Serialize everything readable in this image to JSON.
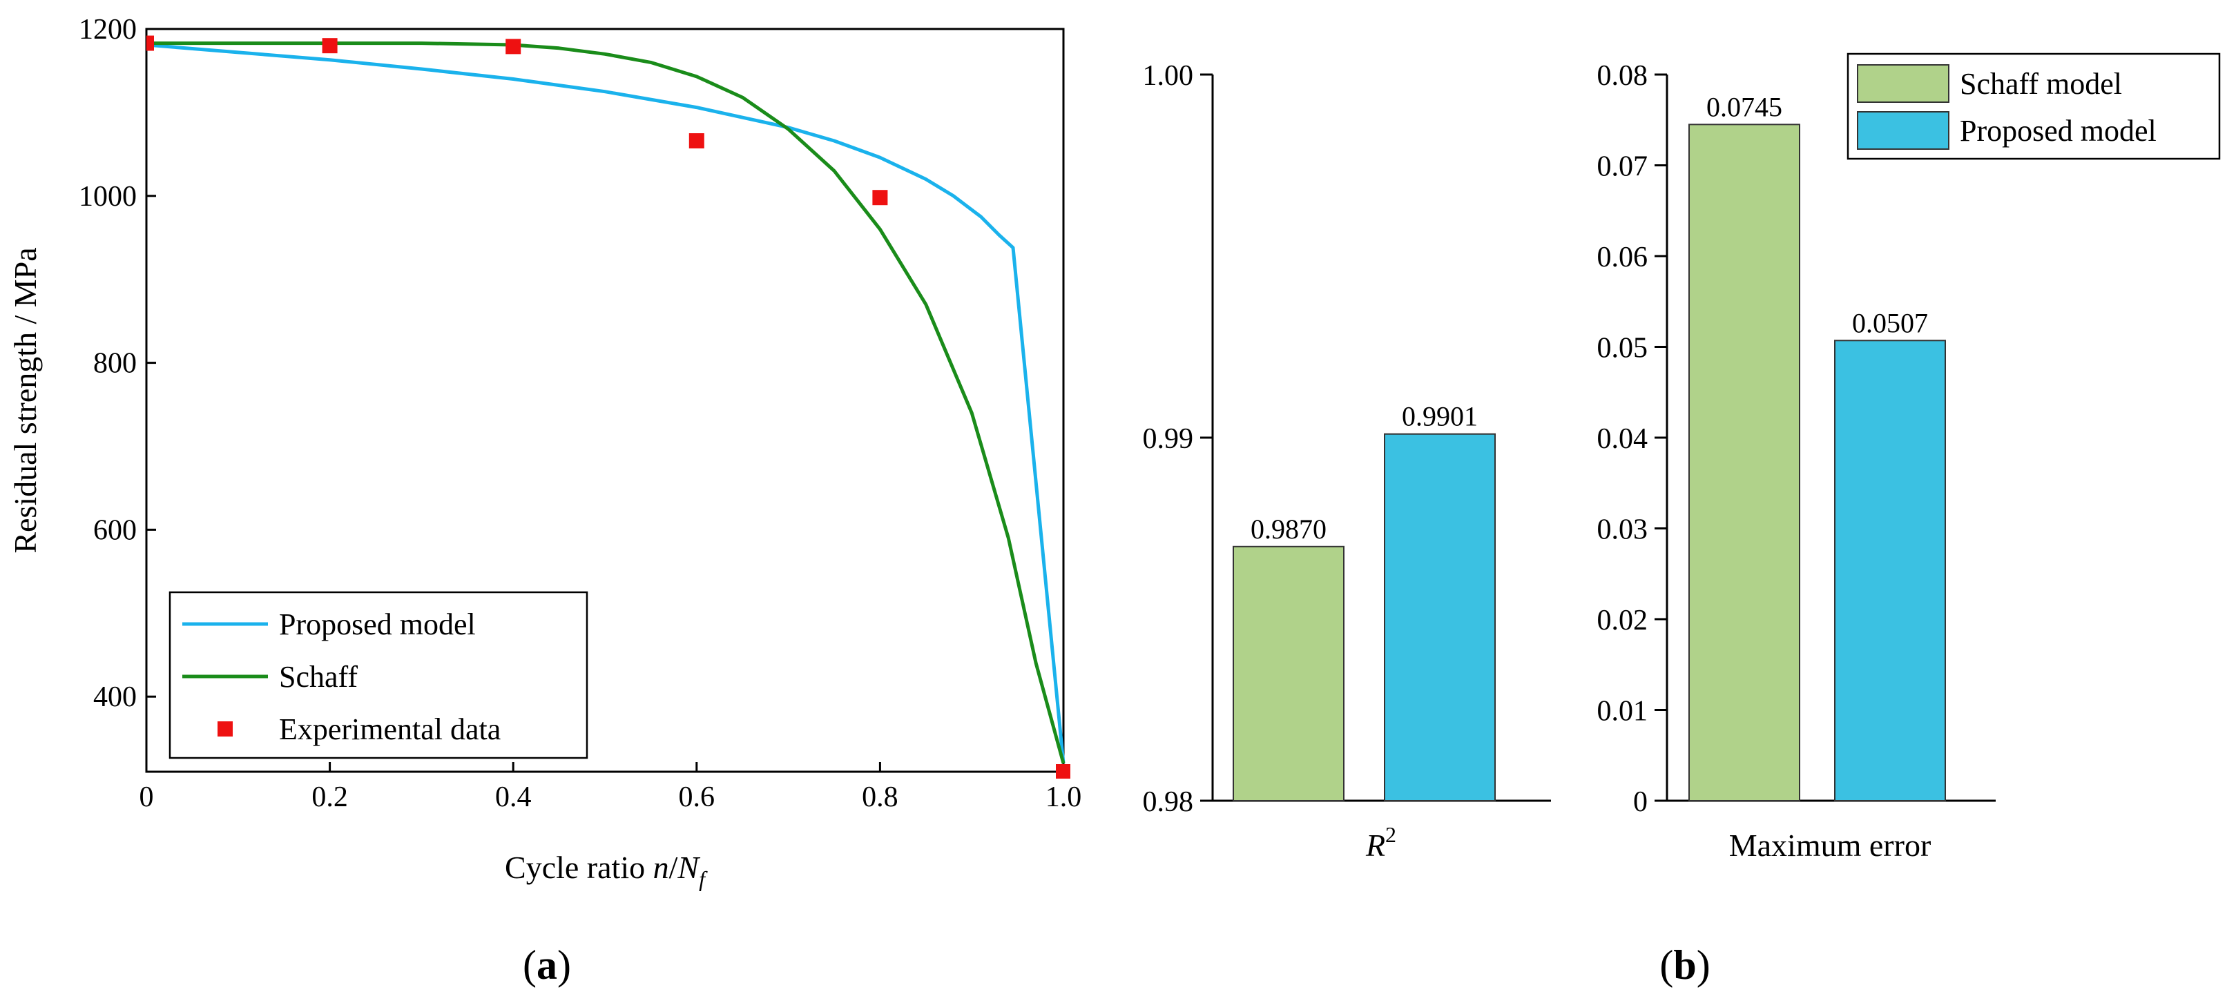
{
  "chart_data": [
    {
      "type": "line",
      "panel": "a",
      "xlabel_prefix": "Cycle ratio ",
      "xlabel_n": "n",
      "xlabel_slash": "/",
      "xlabel_N": "N",
      "xlabel_sub": "f",
      "ylabel": "Residual strength / MPa",
      "xlim": [
        0,
        1.0
      ],
      "ylim": [
        310,
        1200
      ],
      "xticks": [
        0,
        0.2,
        0.4,
        0.6,
        0.8,
        1.0
      ],
      "xtick_labels": [
        "0",
        "0.2",
        "0.4",
        "0.6",
        "0.8",
        "1.0"
      ],
      "yticks": [
        400,
        600,
        800,
        1000,
        1200
      ],
      "ytick_labels": [
        "400",
        "600",
        "800",
        "1000",
        "1200"
      ],
      "legend_position": "bottom-left",
      "series": [
        {
          "name": "Proposed model",
          "style": "line",
          "color": "#1ab2ec",
          "x": [
            0,
            0.1,
            0.2,
            0.3,
            0.4,
            0.5,
            0.6,
            0.7,
            0.75,
            0.8,
            0.85,
            0.88,
            0.91,
            0.93,
            0.945,
            1.0
          ],
          "y": [
            1181,
            1172,
            1163,
            1152,
            1140,
            1125,
            1106,
            1082,
            1066,
            1046,
            1020,
            1000,
            975,
            953,
            938,
            320
          ]
        },
        {
          "name": "Schaff",
          "style": "line",
          "color": "#1a8c1a",
          "x": [
            0,
            0.1,
            0.2,
            0.3,
            0.4,
            0.45,
            0.5,
            0.55,
            0.6,
            0.65,
            0.7,
            0.75,
            0.8,
            0.85,
            0.9,
            0.94,
            0.97,
            1.0
          ],
          "y": [
            1183,
            1183,
            1183,
            1183,
            1181,
            1177,
            1170,
            1160,
            1143,
            1118,
            1080,
            1030,
            960,
            870,
            740,
            590,
            440,
            320
          ]
        },
        {
          "name": "Experimental data",
          "style": "marker",
          "color": "#ee1111",
          "x": [
            0,
            0.2,
            0.4,
            0.6,
            0.8,
            1.0
          ],
          "y": [
            1183,
            1180,
            1179,
            1066,
            998,
            310
          ]
        }
      ]
    },
    {
      "type": "bar",
      "panel": "b-left",
      "xlabel": "R",
      "xlabel_sup": "2",
      "ylim": [
        0.98,
        1.0
      ],
      "yticks": [
        0.98,
        0.99,
        1.0
      ],
      "ytick_labels": [
        "0.98",
        "0.99",
        "1.00"
      ],
      "categories": [
        "Schaff model",
        "Proposed model"
      ],
      "values": [
        0.987,
        0.9901
      ],
      "value_labels": [
        "0.9870",
        "0.9901"
      ],
      "colors": [
        "#b0d28a",
        "#3bc1e2"
      ]
    },
    {
      "type": "bar",
      "panel": "b-right",
      "xlabel": "Maximum error",
      "ylim": [
        0,
        0.08
      ],
      "yticks": [
        0,
        0.01,
        0.02,
        0.03,
        0.04,
        0.05,
        0.06,
        0.07,
        0.08
      ],
      "ytick_labels": [
        "0",
        "0.01",
        "0.02",
        "0.03",
        "0.04",
        "0.05",
        "0.06",
        "0.07",
        "0.08"
      ],
      "categories": [
        "Schaff model",
        "Proposed model"
      ],
      "values": [
        0.0745,
        0.0507
      ],
      "value_labels": [
        "0.0745",
        "0.0507"
      ],
      "colors": [
        "#b0d28a",
        "#3bc1e2"
      ],
      "legend_position": "top-right"
    }
  ],
  "panel_labels": {
    "a": {
      "open": "(",
      "letter": "a",
      "close": ")"
    },
    "b": {
      "open": "(",
      "letter": "b",
      "close": ")"
    }
  }
}
